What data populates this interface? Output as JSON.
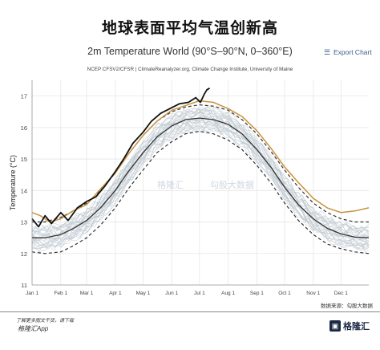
{
  "headline": "地球表面平均气温创新高",
  "export_label": "Export Chart",
  "icon_export": "hamburger-menu-icon",
  "footer": {
    "data_source": "数据来源：勾股大数据",
    "qr_hint": "了解更多图文干货，请下载",
    "app_name": "格隆汇App",
    "logo_text": "格隆汇",
    "watermark_1": "格隆汇",
    "watermark_2": "勾股大数据"
  },
  "colors": {
    "current_year": "#111111",
    "prior_year": "#c8923c",
    "mean": "#333333",
    "sigma": "#333333",
    "ensemble": "#b9c4cc",
    "axis_text": "#444444",
    "grid": "#e6e6e6"
  },
  "chart_data": {
    "type": "line",
    "title": "2m Temperature World (90°S–90°N, 0–360°E)",
    "subtitle": "NCEP CFSV2/CFSR | ClimateReanalyzer.org, Climate Change Institute, University of Maine",
    "ylabel": "Temperature (°C)",
    "xlabel": "",
    "ylim": [
      11,
      17.5
    ],
    "yticks": [
      11,
      12,
      13,
      14,
      15,
      16,
      17
    ],
    "xlim": [
      1,
      365
    ],
    "xticks": [
      {
        "day": 1,
        "label": "Jan 1"
      },
      {
        "day": 32,
        "label": "Feb 1"
      },
      {
        "day": 60,
        "label": "Mar 1"
      },
      {
        "day": 91,
        "label": "Apr 1"
      },
      {
        "day": 121,
        "label": "May 1"
      },
      {
        "day": 152,
        "label": "Jun 1"
      },
      {
        "day": 182,
        "label": "Jul 1"
      },
      {
        "day": 213,
        "label": "Aug 1"
      },
      {
        "day": 244,
        "label": "Sep 1"
      },
      {
        "day": 274,
        "label": "Oct 1"
      },
      {
        "day": 305,
        "label": "Nov 1"
      },
      {
        "day": 335,
        "label": "Dec 1"
      }
    ],
    "grid": true,
    "series": [
      {
        "role": "mean",
        "x": [
          1,
          15,
          32,
          46,
          60,
          75,
          91,
          105,
          121,
          136,
          152,
          167,
          182,
          197,
          213,
          228,
          244,
          259,
          274,
          289,
          305,
          320,
          335,
          350,
          365
        ],
        "y": [
          12.5,
          12.5,
          12.6,
          12.8,
          13.05,
          13.45,
          14.0,
          14.6,
          15.2,
          15.7,
          16.05,
          16.25,
          16.3,
          16.25,
          16.1,
          15.8,
          15.3,
          14.75,
          14.1,
          13.55,
          13.1,
          12.8,
          12.62,
          12.52,
          12.5
        ]
      },
      {
        "role": "upper-2sigma",
        "x": [
          1,
          15,
          32,
          46,
          60,
          75,
          91,
          105,
          121,
          136,
          152,
          167,
          182,
          197,
          213,
          228,
          244,
          259,
          274,
          289,
          305,
          320,
          335,
          350,
          365
        ],
        "y": [
          13.0,
          13.0,
          13.15,
          13.35,
          13.6,
          14.0,
          14.55,
          15.15,
          15.75,
          16.2,
          16.5,
          16.65,
          16.72,
          16.68,
          16.55,
          16.25,
          15.8,
          15.25,
          14.65,
          14.1,
          13.6,
          13.3,
          13.1,
          13.0,
          13.0
        ]
      },
      {
        "role": "lower-2sigma",
        "x": [
          1,
          15,
          32,
          46,
          60,
          75,
          91,
          105,
          121,
          136,
          152,
          167,
          182,
          197,
          213,
          228,
          244,
          259,
          274,
          289,
          305,
          320,
          335,
          350,
          365
        ],
        "y": [
          12.05,
          12.0,
          12.05,
          12.25,
          12.5,
          12.9,
          13.45,
          14.05,
          14.65,
          15.2,
          15.55,
          15.8,
          15.88,
          15.8,
          15.6,
          15.3,
          14.8,
          14.25,
          13.6,
          13.05,
          12.6,
          12.3,
          12.15,
          12.05,
          12.0
        ]
      },
      {
        "role": "prior-year",
        "x": [
          1,
          10,
          20,
          32,
          45,
          60,
          75,
          91,
          105,
          121,
          136,
          152,
          167,
          182,
          197,
          213,
          228,
          244,
          259,
          274,
          289,
          305,
          320,
          335,
          350,
          365
        ],
        "y": [
          13.3,
          13.2,
          13.0,
          13.1,
          13.35,
          13.55,
          14.05,
          14.55,
          15.15,
          15.75,
          16.2,
          16.55,
          16.7,
          16.85,
          16.8,
          16.6,
          16.35,
          15.9,
          15.35,
          14.75,
          14.25,
          13.75,
          13.45,
          13.3,
          13.35,
          13.45
        ]
      },
      {
        "role": "current-year",
        "x": [
          1,
          8,
          15,
          22,
          32,
          40,
          50,
          60,
          70,
          80,
          91,
          100,
          110,
          121,
          130,
          140,
          150,
          160,
          170,
          178,
          183,
          187,
          190,
          193
        ],
        "y": [
          13.1,
          12.85,
          13.2,
          12.95,
          13.3,
          13.05,
          13.45,
          13.65,
          13.8,
          14.15,
          14.6,
          15.0,
          15.5,
          15.85,
          16.2,
          16.45,
          16.6,
          16.75,
          16.8,
          16.95,
          16.8,
          17.05,
          17.2,
          17.25
        ]
      }
    ]
  }
}
